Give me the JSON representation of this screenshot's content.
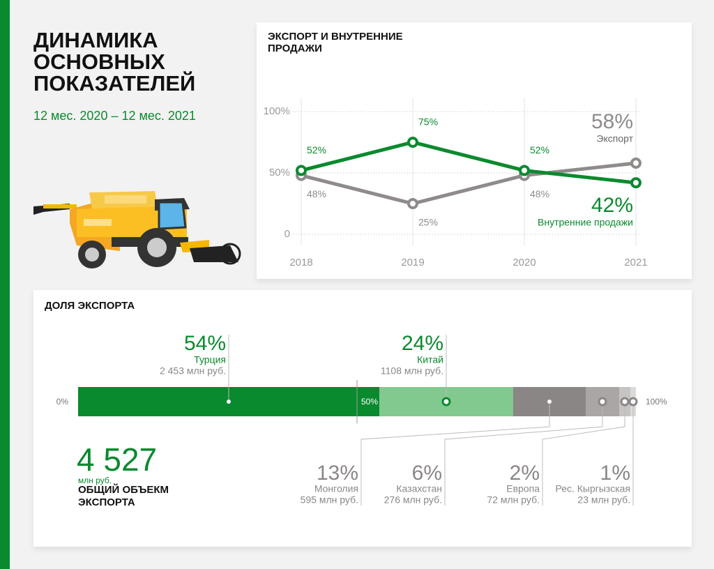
{
  "header": {
    "title": "ДИНАМИКА ОСНОВНЫХ ПОКАЗАТЕЛЕЙ",
    "subtitle": "12 мес. 2020 – 12 мес. 2021"
  },
  "chart_data": [
    {
      "type": "line",
      "title": "ЭКСПОРТ И ВНУТРЕННИЕ ПРОДАЖИ",
      "categories": [
        "2018",
        "2019",
        "2020",
        "2021"
      ],
      "ylim": [
        0,
        100
      ],
      "yticks": [
        0,
        {
          "value": 50,
          "label": "50%"
        },
        {
          "value": 100,
          "label": "100%"
        }
      ],
      "grid": true,
      "series": [
        {
          "name": "Экспорт",
          "color": "#8e8b8a",
          "values": [
            48,
            25,
            48,
            58
          ],
          "value_labels": [
            "48%",
            "25%",
            "48%",
            "58%"
          ]
        },
        {
          "name": "Внутренние продажи",
          "color": "#0a8a2e",
          "values": [
            52,
            75,
            52,
            42
          ],
          "value_labels": [
            "52%",
            "75%",
            "52%",
            "42%"
          ]
        }
      ]
    },
    {
      "type": "stacked-bar",
      "title": "ДОЛЯ ЭКСПОРТА",
      "xlim": [
        0,
        100
      ],
      "xticks": [
        {
          "value": 0,
          "label": "0%"
        },
        {
          "value": 50,
          "label": "50%"
        },
        {
          "value": 100,
          "label": "100%"
        }
      ],
      "series": [
        {
          "name": "Турция",
          "color": "#0a8a2e",
          "values": [
            54
          ],
          "value_labels": [
            "54%"
          ],
          "amount": "2 453 млн руб."
        },
        {
          "name": "Китай",
          "color": "#82c98f",
          "values": [
            24
          ],
          "value_labels": [
            "24%"
          ],
          "amount": "1108 млн руб."
        },
        {
          "name": "Монголия",
          "color": "#8a8685",
          "values": [
            13
          ],
          "value_labels": [
            "13%"
          ],
          "amount": "595 млн руб."
        },
        {
          "name": "Казахстан",
          "color": "#a9a6a5",
          "values": [
            6
          ],
          "value_labels": [
            "6%"
          ],
          "amount": "276 млн руб."
        },
        {
          "name": "Европа",
          "color": "#c6c4c3",
          "values": [
            2
          ],
          "value_labels": [
            "2%"
          ],
          "amount": "72 млн руб."
        },
        {
          "name": "Рес. Кыргызская",
          "color": "#dcdad9",
          "values": [
            1
          ],
          "value_labels": [
            "1%"
          ],
          "amount": "23 млн руб."
        }
      ],
      "total": {
        "value": "4 527",
        "unit": "млн руб.",
        "label": "ОБЩИЙ ОБЪЕКМ ЭКСПОРТА"
      }
    }
  ]
}
